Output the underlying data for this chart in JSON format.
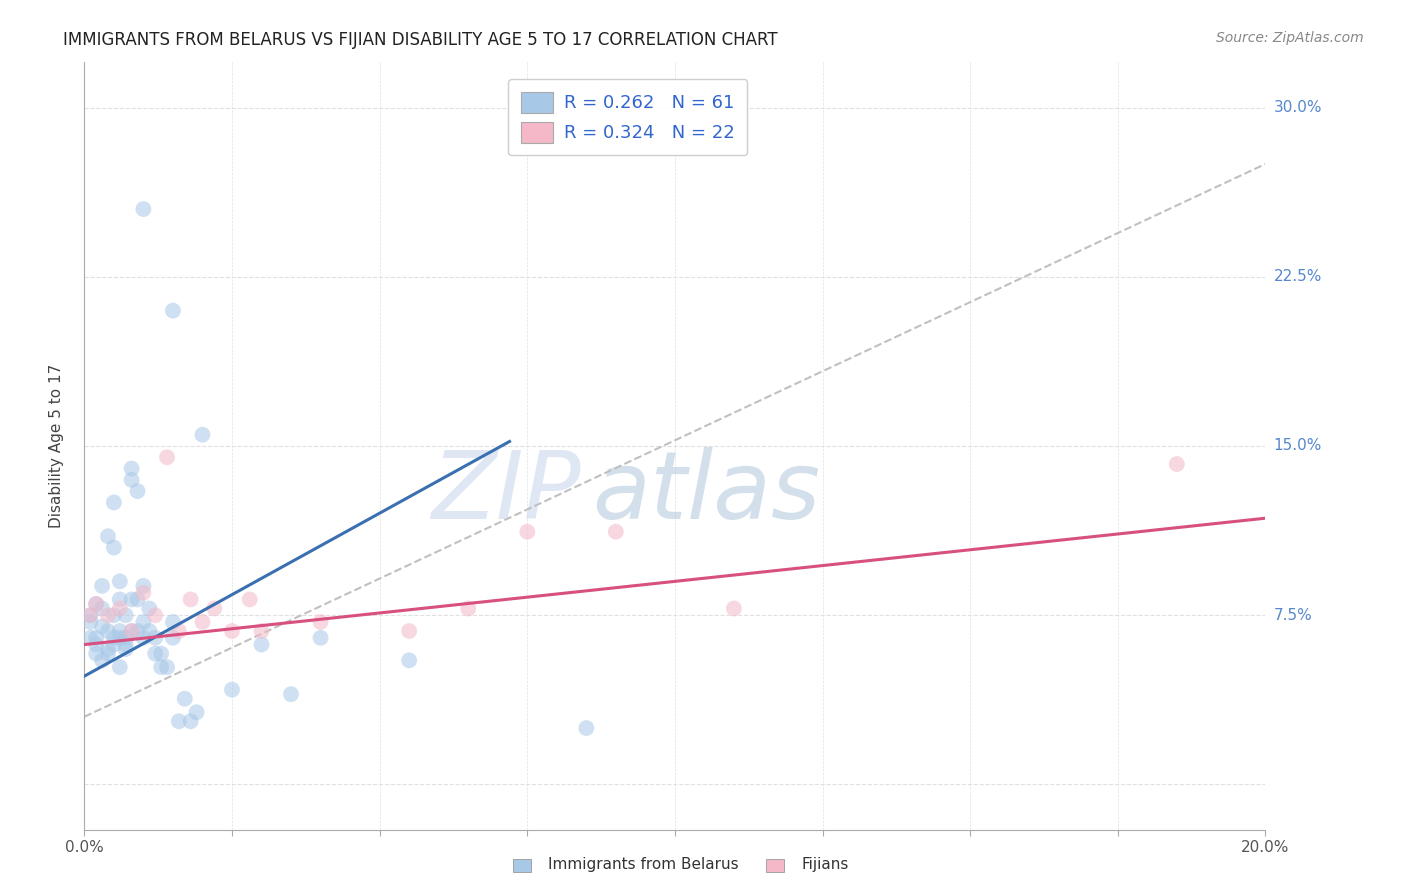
{
  "title": "IMMIGRANTS FROM BELARUS VS FIJIAN DISABILITY AGE 5 TO 17 CORRELATION CHART",
  "source": "Source: ZipAtlas.com",
  "xlabel_bottom": [
    "Immigrants from Belarus",
    "Fijians"
  ],
  "ylabel": "Disability Age 5 to 17",
  "xlim": [
    0.0,
    0.2
  ],
  "ylim": [
    -0.02,
    0.32
  ],
  "xticks": [
    0.0,
    0.025,
    0.05,
    0.075,
    0.1,
    0.125,
    0.15,
    0.175,
    0.2
  ],
  "xtick_labels": [
    "0.0%",
    "",
    "",
    "",
    "",
    "",
    "",
    "",
    "20.0%"
  ],
  "yticks": [
    0.0,
    0.075,
    0.15,
    0.225,
    0.3
  ],
  "ytick_labels": [
    "",
    "7.5%",
    "15.0%",
    "22.5%",
    "30.0%"
  ],
  "legend_r1": "R = 0.262",
  "legend_n1": "N = 61",
  "legend_r2": "R = 0.324",
  "legend_n2": "N = 22",
  "blue_color": "#a8c8e8",
  "pink_color": "#f4b8c8",
  "blue_edge_color": "#7ab0d8",
  "pink_edge_color": "#e898b0",
  "blue_line_color": "#3a70b0",
  "pink_line_color": "#d85080",
  "dashed_line_color": "#c0c0c0",
  "watermark_zip": "ZIP",
  "watermark_atlas": "atlas",
  "blue_scatter_x": [
    0.001,
    0.002,
    0.002,
    0.003,
    0.003,
    0.003,
    0.004,
    0.004,
    0.004,
    0.005,
    0.005,
    0.005,
    0.005,
    0.006,
    0.006,
    0.006,
    0.007,
    0.007,
    0.007,
    0.008,
    0.008,
    0.008,
    0.009,
    0.009,
    0.01,
    0.01,
    0.01,
    0.011,
    0.011,
    0.012,
    0.012,
    0.013,
    0.013,
    0.014,
    0.015,
    0.015,
    0.016,
    0.017,
    0.018,
    0.019,
    0.001,
    0.001,
    0.002,
    0.002,
    0.003,
    0.004,
    0.005,
    0.006,
    0.006,
    0.007,
    0.008,
    0.009,
    0.025,
    0.03,
    0.035,
    0.04,
    0.055,
    0.085,
    0.01,
    0.015,
    0.02
  ],
  "blue_scatter_y": [
    0.075,
    0.08,
    0.065,
    0.078,
    0.088,
    0.07,
    0.11,
    0.068,
    0.06,
    0.125,
    0.105,
    0.075,
    0.065,
    0.09,
    0.082,
    0.068,
    0.065,
    0.075,
    0.06,
    0.14,
    0.135,
    0.082,
    0.13,
    0.082,
    0.088,
    0.072,
    0.065,
    0.068,
    0.078,
    0.058,
    0.065,
    0.058,
    0.052,
    0.052,
    0.065,
    0.072,
    0.028,
    0.038,
    0.028,
    0.032,
    0.072,
    0.065,
    0.062,
    0.058,
    0.055,
    0.058,
    0.062,
    0.052,
    0.065,
    0.062,
    0.068,
    0.068,
    0.042,
    0.062,
    0.04,
    0.065,
    0.055,
    0.025,
    0.255,
    0.21,
    0.155
  ],
  "pink_scatter_x": [
    0.001,
    0.002,
    0.004,
    0.006,
    0.008,
    0.01,
    0.012,
    0.014,
    0.016,
    0.018,
    0.02,
    0.022,
    0.025,
    0.028,
    0.03,
    0.04,
    0.055,
    0.065,
    0.075,
    0.09,
    0.11,
    0.185
  ],
  "pink_scatter_y": [
    0.075,
    0.08,
    0.075,
    0.078,
    0.068,
    0.085,
    0.075,
    0.145,
    0.068,
    0.082,
    0.072,
    0.078,
    0.068,
    0.082,
    0.068,
    0.072,
    0.068,
    0.078,
    0.112,
    0.112,
    0.078,
    0.142
  ],
  "blue_trend_x": [
    0.0,
    0.072
  ],
  "blue_trend_y": [
    0.048,
    0.152
  ],
  "pink_trend_x": [
    0.0,
    0.2
  ],
  "pink_trend_y": [
    0.062,
    0.118
  ],
  "dashed_trend_x": [
    0.0,
    0.2
  ],
  "dashed_trend_y": [
    0.03,
    0.275
  ],
  "background_color": "#ffffff",
  "grid_color": "#e0e0e0",
  "title_fontsize": 12,
  "source_fontsize": 10,
  "ylabel_fontsize": 11,
  "tick_fontsize": 11,
  "legend_fontsize": 13,
  "scatter_size": 130,
  "scatter_alpha": 0.55
}
